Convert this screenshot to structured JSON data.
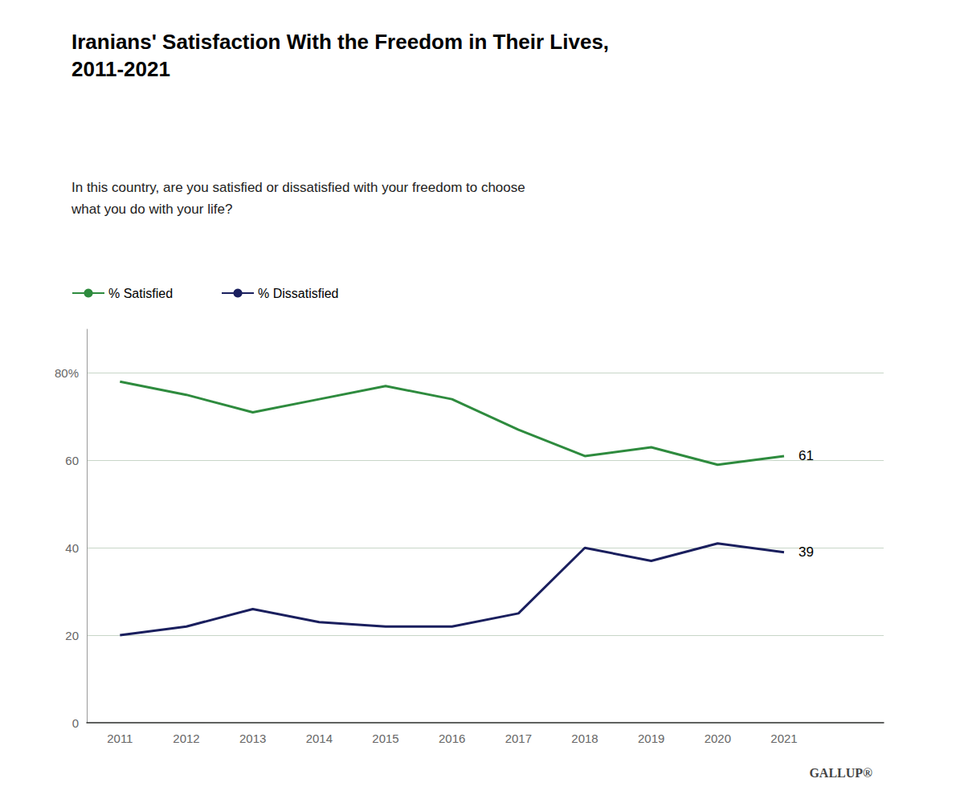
{
  "chart_data": {
    "type": "line",
    "title": "Iranians' Satisfaction With the Freedom in Their Lives,\n2011-2021",
    "subtitle": "In this country, are you satisfied or dissatisfied with your freedom to choose\nwhat you do with your life?",
    "x": [
      2011,
      2012,
      2013,
      2014,
      2015,
      2016,
      2017,
      2018,
      2019,
      2020,
      2021
    ],
    "series": [
      {
        "name": "% Satisfied",
        "color": "#2e8b3e",
        "values": [
          78,
          75,
          71,
          74,
          77,
          74,
          67,
          61,
          63,
          59,
          61
        ]
      },
      {
        "name": "% Dissatisfied",
        "color": "#1a1f5e",
        "values": [
          20,
          22,
          26,
          23,
          22,
          22,
          25,
          40,
          37,
          41,
          39
        ]
      }
    ],
    "xlim": [
      2010.5,
      2022.5
    ],
    "xticks": [
      2011,
      2012,
      2013,
      2014,
      2015,
      2016,
      2017,
      2018,
      2019,
      2020,
      2021
    ],
    "ylim": [
      0,
      90
    ],
    "yticks": [
      0,
      20,
      40,
      60,
      {
        "value": 80,
        "label": "80%"
      }
    ],
    "grid": true,
    "legend": "upper left",
    "annotations": [
      {
        "text": "61",
        "x": 2021,
        "y": 61
      },
      {
        "text": "39",
        "x": 2021,
        "y": 39
      },
      {
        "text": "GALLUP®"
      }
    ]
  }
}
